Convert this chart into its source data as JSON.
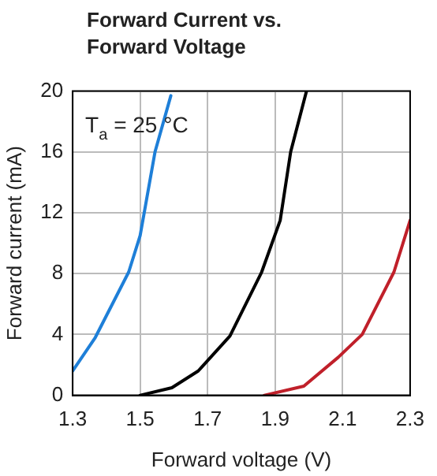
{
  "chart_data": {
    "type": "line",
    "title": "Forward Current vs. Forward Voltage",
    "xlabel": "Forward voltage (V)",
    "ylabel": "Forward current (mA)",
    "annotations": [
      "T$_{a}$ = 25 °C"
    ],
    "xlim": [
      1.3,
      2.3
    ],
    "xticks": [
      1.3,
      1.5,
      1.7,
      1.9,
      2.1,
      2.3
    ],
    "ylim": [
      0,
      20
    ],
    "yticks": [
      0,
      4,
      8,
      12,
      16,
      20
    ],
    "grid": true,
    "legend": false,
    "marker": "none",
    "line_style": "solid",
    "series": [
      {
        "color": "#1e7fd8",
        "x": [
          1.3,
          1.367,
          1.466,
          1.5,
          1.544,
          1.591
        ],
        "values": [
          1.6,
          3.8,
          8.1,
          10.5,
          16,
          19.7
        ]
      },
      {
        "color": "#000000",
        "x": [
          1.5,
          1.594,
          1.672,
          1.766,
          1.86,
          1.915,
          1.946,
          1.993
        ],
        "values": [
          0,
          0.5,
          1.6,
          3.9,
          8.1,
          11.5,
          16,
          20
        ]
      },
      {
        "color": "#c0202a",
        "x": [
          1.868,
          1.985,
          2.087,
          2.158,
          2.252,
          2.3
        ],
        "values": [
          0,
          0.6,
          2.5,
          4,
          8.1,
          11.5
        ]
      }
    ]
  }
}
